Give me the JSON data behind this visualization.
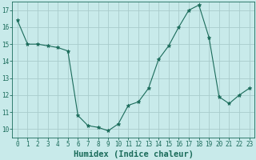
{
  "x": [
    0,
    1,
    2,
    3,
    4,
    5,
    6,
    7,
    8,
    9,
    10,
    11,
    12,
    13,
    14,
    15,
    16,
    17,
    18,
    19,
    20,
    21,
    22,
    23
  ],
  "y": [
    16.4,
    15.0,
    15.0,
    14.9,
    14.8,
    14.6,
    10.8,
    10.2,
    10.1,
    9.9,
    10.3,
    11.4,
    11.6,
    12.4,
    14.1,
    14.9,
    16.0,
    17.0,
    17.3,
    15.4,
    11.9,
    11.5,
    12.0,
    12.4
  ],
  "line_color": "#1a6b5a",
  "marker": "*",
  "marker_size": 3.5,
  "bg_color": "#c8eaea",
  "grid_color": "#a8cccc",
  "xlabel": "Humidex (Indice chaleur)",
  "ylim": [
    9.5,
    17.5
  ],
  "xlim": [
    -0.5,
    23.5
  ],
  "yticks": [
    10,
    11,
    12,
    13,
    14,
    15,
    16,
    17
  ],
  "xticks": [
    0,
    1,
    2,
    3,
    4,
    5,
    6,
    7,
    8,
    9,
    10,
    11,
    12,
    13,
    14,
    15,
    16,
    17,
    18,
    19,
    20,
    21,
    22,
    23
  ],
  "tick_fontsize": 5.5,
  "xlabel_fontsize": 7.5,
  "font_family": "monospace"
}
